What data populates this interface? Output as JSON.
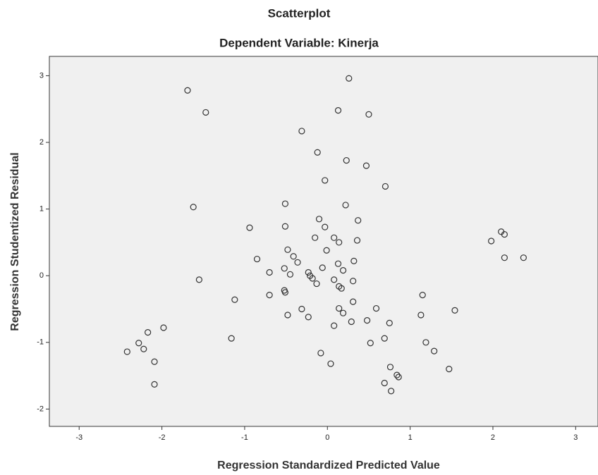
{
  "chart_data": {
    "type": "scatter",
    "title": "Scatterplot",
    "subtitle": "Dependent Variable: Kinerja",
    "x_label": "Regression Standardized Predicted Value",
    "y_label": "Regression Studentized Residual",
    "xlim": [
      -3.36,
      3.27
    ],
    "ylim": [
      -2.26,
      3.29
    ],
    "xticks": [
      -3,
      -2,
      -1,
      0,
      1,
      2,
      3
    ],
    "yticks": [
      -2,
      -1,
      0,
      1,
      2,
      3
    ],
    "color": "#333333",
    "x": [
      -1.69,
      -1.47,
      0.26,
      0.13,
      0.5,
      -0.31,
      -0.12,
      0.23,
      0.47,
      -0.03,
      0.7,
      -1.62,
      -0.51,
      0.22,
      -0.1,
      0.37,
      -0.51,
      -0.03,
      -0.94,
      0.08,
      -0.15,
      0.14,
      0.36,
      -0.48,
      -0.01,
      -0.41,
      -0.85,
      -0.36,
      0.32,
      0.13,
      -0.06,
      -0.52,
      0.19,
      -0.7,
      -0.23,
      -0.45,
      -0.21,
      -0.18,
      0.08,
      0.31,
      -0.13,
      0.14,
      0.17,
      -1.55,
      -0.52,
      -0.51,
      -0.7,
      -1.12,
      1.15,
      0.31,
      -0.31,
      0.14,
      0.59,
      0.19,
      1.13,
      1.54,
      -0.48,
      -0.23,
      0.29,
      0.48,
      0.75,
      0.08,
      -1.98,
      -2.17,
      -1.16,
      0.69,
      0.52,
      1.19,
      -2.28,
      -2.42,
      -2.22,
      1.29,
      -0.08,
      -2.09,
      0.04,
      1.47,
      0.76,
      0.84,
      0.86,
      -2.09,
      0.69,
      0.77,
      1.98,
      2.1,
      2.14,
      2.14,
      2.37
    ],
    "y": [
      2.78,
      2.45,
      2.96,
      2.48,
      2.42,
      2.17,
      1.85,
      1.73,
      1.65,
      1.43,
      1.34,
      1.03,
      1.08,
      1.06,
      0.85,
      0.83,
      0.74,
      0.73,
      0.72,
      0.57,
      0.57,
      0.5,
      0.53,
      0.39,
      0.38,
      0.29,
      0.25,
      0.2,
      0.22,
      0.18,
      0.12,
      0.11,
      0.08,
      0.05,
      0.05,
      0.02,
      0.0,
      -0.04,
      -0.06,
      -0.08,
      -0.12,
      -0.16,
      -0.19,
      -0.06,
      -0.22,
      -0.25,
      -0.29,
      -0.36,
      -0.29,
      -0.39,
      -0.5,
      -0.49,
      -0.49,
      -0.56,
      -0.59,
      -0.52,
      -0.59,
      -0.62,
      -0.69,
      -0.67,
      -0.71,
      -0.75,
      -0.78,
      -0.85,
      -0.94,
      -0.94,
      -1.01,
      -1.0,
      -1.01,
      -1.14,
      -1.1,
      -1.13,
      -1.16,
      -1.29,
      -1.32,
      -1.4,
      -1.37,
      -1.49,
      -1.52,
      -1.63,
      -1.61,
      -1.73,
      0.52,
      0.66,
      0.62,
      0.27,
      0.27
    ]
  }
}
